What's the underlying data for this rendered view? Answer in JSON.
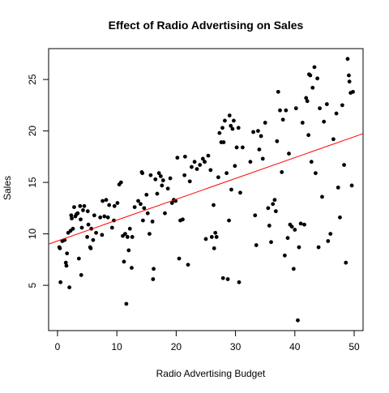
{
  "chart_data": {
    "type": "scatter",
    "title": "Effect of Radio Advertising on Sales",
    "xlabel": "Radio Advertising Budget",
    "ylabel": "Sales",
    "xlim": [
      -1.5,
      51.5
    ],
    "ylim": [
      0.6,
      28.0
    ],
    "x_ticks": [
      0,
      10,
      20,
      30,
      40,
      50
    ],
    "y_ticks": [
      5,
      10,
      15,
      20,
      25
    ],
    "grid": false,
    "legend": "none",
    "point_color": "#000000",
    "line_color": "#ff0000",
    "regression_line": {
      "intercept": 9.31,
      "slope": 0.2025
    },
    "points": [
      [
        0.3,
        8.7
      ],
      [
        0.4,
        8.6
      ],
      [
        0.5,
        5.3
      ],
      [
        0.8,
        9.3
      ],
      [
        1.2,
        9.4
      ],
      [
        1.4,
        7.2
      ],
      [
        1.5,
        6.9
      ],
      [
        1.6,
        8.1
      ],
      [
        1.8,
        10.1
      ],
      [
        2.0,
        4.8
      ],
      [
        2.2,
        10.3
      ],
      [
        2.3,
        11.8
      ],
      [
        2.4,
        11.5
      ],
      [
        2.6,
        10.5
      ],
      [
        2.8,
        12.6
      ],
      [
        3.0,
        11.7
      ],
      [
        3.2,
        11.9
      ],
      [
        3.4,
        12.0
      ],
      [
        3.6,
        7.6
      ],
      [
        3.8,
        12.7
      ],
      [
        3.9,
        11.4
      ],
      [
        4.0,
        6.0
      ],
      [
        4.1,
        10.6
      ],
      [
        4.3,
        12.3
      ],
      [
        4.5,
        12.7
      ],
      [
        5.0,
        9.7
      ],
      [
        5.1,
        12.2
      ],
      [
        5.2,
        10.9
      ],
      [
        5.5,
        8.7
      ],
      [
        5.6,
        8.6
      ],
      [
        5.7,
        10.5
      ],
      [
        6.0,
        9.4
      ],
      [
        6.2,
        11.8
      ],
      [
        6.5,
        10.1
      ],
      [
        7.2,
        11.6
      ],
      [
        7.5,
        9.9
      ],
      [
        7.6,
        13.2
      ],
      [
        7.9,
        11.7
      ],
      [
        8.2,
        13.3
      ],
      [
        8.5,
        11.6
      ],
      [
        8.7,
        12.8
      ],
      [
        9.2,
        10.6
      ],
      [
        9.5,
        11.3
      ],
      [
        9.6,
        12.7
      ],
      [
        10.1,
        13.0
      ],
      [
        10.4,
        14.8
      ],
      [
        10.7,
        15.0
      ],
      [
        11.0,
        9.8
      ],
      [
        11.2,
        7.3
      ],
      [
        11.4,
        10.0
      ],
      [
        11.6,
        3.2
      ],
      [
        11.8,
        9.7
      ],
      [
        12.0,
        8.4
      ],
      [
        12.2,
        10.5
      ],
      [
        12.5,
        6.7
      ],
      [
        12.6,
        9.7
      ],
      [
        13.0,
        12.6
      ],
      [
        13.6,
        13.2
      ],
      [
        14.0,
        12.9
      ],
      [
        14.2,
        16.0
      ],
      [
        14.3,
        15.9
      ],
      [
        14.4,
        11.3
      ],
      [
        14.6,
        12.5
      ],
      [
        15.0,
        13.8
      ],
      [
        15.2,
        12.0
      ],
      [
        15.5,
        10.0
      ],
      [
        15.7,
        15.7
      ],
      [
        16.0,
        11.2
      ],
      [
        16.1,
        5.6
      ],
      [
        16.2,
        6.6
      ],
      [
        16.5,
        15.3
      ],
      [
        16.8,
        13.9
      ],
      [
        17.1,
        15.9
      ],
      [
        17.4,
        15.6
      ],
      [
        17.6,
        14.7
      ],
      [
        17.8,
        15.2
      ],
      [
        18.1,
        12.0
      ],
      [
        18.6,
        14.4
      ],
      [
        19.0,
        15.4
      ],
      [
        19.3,
        13.0
      ],
      [
        19.6,
        13.3
      ],
      [
        19.9,
        13.2
      ],
      [
        20.2,
        17.4
      ],
      [
        20.5,
        7.6
      ],
      [
        20.7,
        11.3
      ],
      [
        21.1,
        11.4
      ],
      [
        21.4,
        15.7
      ],
      [
        21.5,
        17.5
      ],
      [
        22.0,
        7.0
      ],
      [
        22.3,
        15.1
      ],
      [
        22.6,
        16.5
      ],
      [
        23.1,
        17.0
      ],
      [
        23.5,
        16.3
      ],
      [
        24.0,
        16.7
      ],
      [
        24.5,
        17.3
      ],
      [
        24.8,
        17.0
      ],
      [
        25.0,
        9.5
      ],
      [
        25.4,
        17.6
      ],
      [
        25.8,
        16.2
      ],
      [
        26.0,
        9.7
      ],
      [
        26.3,
        12.8
      ],
      [
        26.4,
        8.6
      ],
      [
        26.6,
        10.1
      ],
      [
        26.8,
        9.7
      ],
      [
        27.1,
        15.5
      ],
      [
        27.3,
        19.8
      ],
      [
        27.6,
        18.9
      ],
      [
        27.8,
        20.3
      ],
      [
        27.9,
        5.7
      ],
      [
        28.0,
        18.9
      ],
      [
        28.2,
        21.0
      ],
      [
        28.5,
        15.9
      ],
      [
        28.7,
        5.6
      ],
      [
        28.9,
        11.3
      ],
      [
        29.0,
        21.5
      ],
      [
        29.2,
        20.5
      ],
      [
        29.3,
        14.3
      ],
      [
        29.5,
        20.2
      ],
      [
        29.7,
        21.0
      ],
      [
        29.9,
        16.6
      ],
      [
        30.2,
        18.4
      ],
      [
        30.5,
        20.3
      ],
      [
        30.6,
        5.3
      ],
      [
        30.8,
        14.0
      ],
      [
        31.2,
        18.4
      ],
      [
        32.5,
        17.0
      ],
      [
        33.0,
        19.9
      ],
      [
        33.3,
        11.8
      ],
      [
        33.5,
        8.9
      ],
      [
        33.8,
        20.0
      ],
      [
        34.0,
        18.2
      ],
      [
        34.3,
        19.5
      ],
      [
        34.6,
        17.3
      ],
      [
        35.0,
        20.8
      ],
      [
        35.5,
        12.5
      ],
      [
        35.7,
        10.8
      ],
      [
        36.0,
        9.2
      ],
      [
        36.3,
        12.9
      ],
      [
        36.6,
        13.3
      ],
      [
        36.8,
        12.2
      ],
      [
        37.0,
        19.0
      ],
      [
        37.2,
        23.8
      ],
      [
        37.5,
        22.0
      ],
      [
        37.8,
        16.0
      ],
      [
        38.0,
        21.1
      ],
      [
        38.3,
        7.9
      ],
      [
        38.5,
        22.0
      ],
      [
        38.8,
        9.6
      ],
      [
        39.0,
        17.8
      ],
      [
        39.2,
        10.9
      ],
      [
        39.5,
        10.7
      ],
      [
        39.8,
        6.6
      ],
      [
        40.0,
        10.4
      ],
      [
        40.2,
        22.2
      ],
      [
        40.5,
        1.6
      ],
      [
        40.7,
        8.7
      ],
      [
        41.0,
        11.0
      ],
      [
        41.3,
        20.8
      ],
      [
        41.6,
        10.9
      ],
      [
        41.9,
        23.2
      ],
      [
        42.1,
        22.9
      ],
      [
        42.3,
        19.6
      ],
      [
        42.4,
        25.5
      ],
      [
        42.6,
        25.4
      ],
      [
        42.8,
        17.0
      ],
      [
        43.0,
        24.2
      ],
      [
        43.3,
        26.2
      ],
      [
        43.5,
        15.9
      ],
      [
        43.8,
        25.1
      ],
      [
        44.0,
        8.7
      ],
      [
        44.2,
        22.2
      ],
      [
        44.6,
        13.6
      ],
      [
        44.9,
        20.9
      ],
      [
        45.4,
        22.6
      ],
      [
        45.6,
        9.3
      ],
      [
        46.0,
        10.0
      ],
      [
        46.5,
        19.2
      ],
      [
        47.0,
        21.7
      ],
      [
        47.3,
        14.5
      ],
      [
        47.6,
        11.6
      ],
      [
        48.0,
        22.5
      ],
      [
        48.3,
        16.7
      ],
      [
        48.6,
        7.2
      ],
      [
        48.9,
        27.0
      ],
      [
        49.1,
        25.4
      ],
      [
        49.2,
        24.8
      ],
      [
        49.4,
        23.7
      ],
      [
        49.6,
        14.7
      ],
      [
        49.8,
        23.8
      ]
    ]
  }
}
